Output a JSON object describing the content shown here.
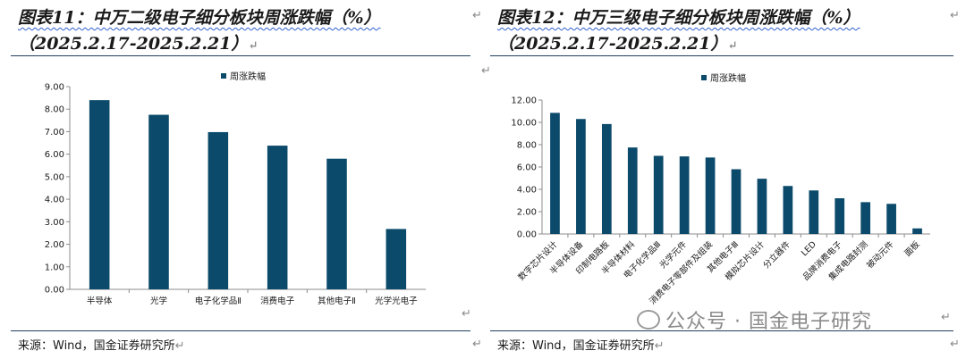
{
  "left": {
    "title": "图表11：中万二级电子细分板块周涨跌幅（%）",
    "date_range": "（2025.2.17-2025.2.21）",
    "source": "来源：Wind，国金证券研究所"
  },
  "right": {
    "title": "图表12：中万三级电子细分板块周涨跌幅（%）",
    "date_range": "（2025.2.17-2025.2.21）",
    "source": "来源：Wind，国金证券研究所"
  },
  "watermark": "公众号 · 国金电子研究",
  "colors": {
    "bar": "#0b4a6a",
    "rule": "#1f3f60"
  },
  "chart_data": [
    {
      "type": "bar",
      "legend": "周涨跌幅",
      "legend_position": "top-center",
      "categories": [
        "半导体",
        "光学",
        "电子化学品Ⅱ",
        "消费电子",
        "其他电子Ⅱ",
        "光学光电子"
      ],
      "values": [
        8.4,
        7.75,
        6.98,
        6.38,
        5.8,
        2.68
      ],
      "ylim": [
        0,
        9
      ],
      "yticks": [
        "0.00",
        "1.00",
        "2.00",
        "3.00",
        "4.00",
        "5.00",
        "6.00",
        "7.00",
        "8.00",
        "9.00"
      ],
      "xlabel": "",
      "ylabel": "",
      "grid": false
    },
    {
      "type": "bar",
      "legend": "周涨跌幅",
      "legend_position": "top-center",
      "categories": [
        "数字芯片设计",
        "半导体设备",
        "印制电路板",
        "半导体材料",
        "电子化学品Ⅲ",
        "光学元件",
        "消费电子零部件及组装",
        "其他电子Ⅲ",
        "模拟芯片设计",
        "分立器件",
        "LED",
        "品牌消费电子",
        "集成电路封测",
        "被动元件",
        "面板"
      ],
      "values": [
        10.85,
        10.3,
        9.85,
        7.75,
        7.0,
        6.95,
        6.85,
        5.8,
        4.95,
        4.3,
        3.9,
        3.2,
        2.85,
        2.7,
        0.5
      ],
      "ylim": [
        0,
        12
      ],
      "yticks": [
        "0.00",
        "2.00",
        "4.00",
        "6.00",
        "8.00",
        "10.00",
        "12.00"
      ],
      "xlabel": "",
      "ylabel": "",
      "grid": false
    }
  ]
}
